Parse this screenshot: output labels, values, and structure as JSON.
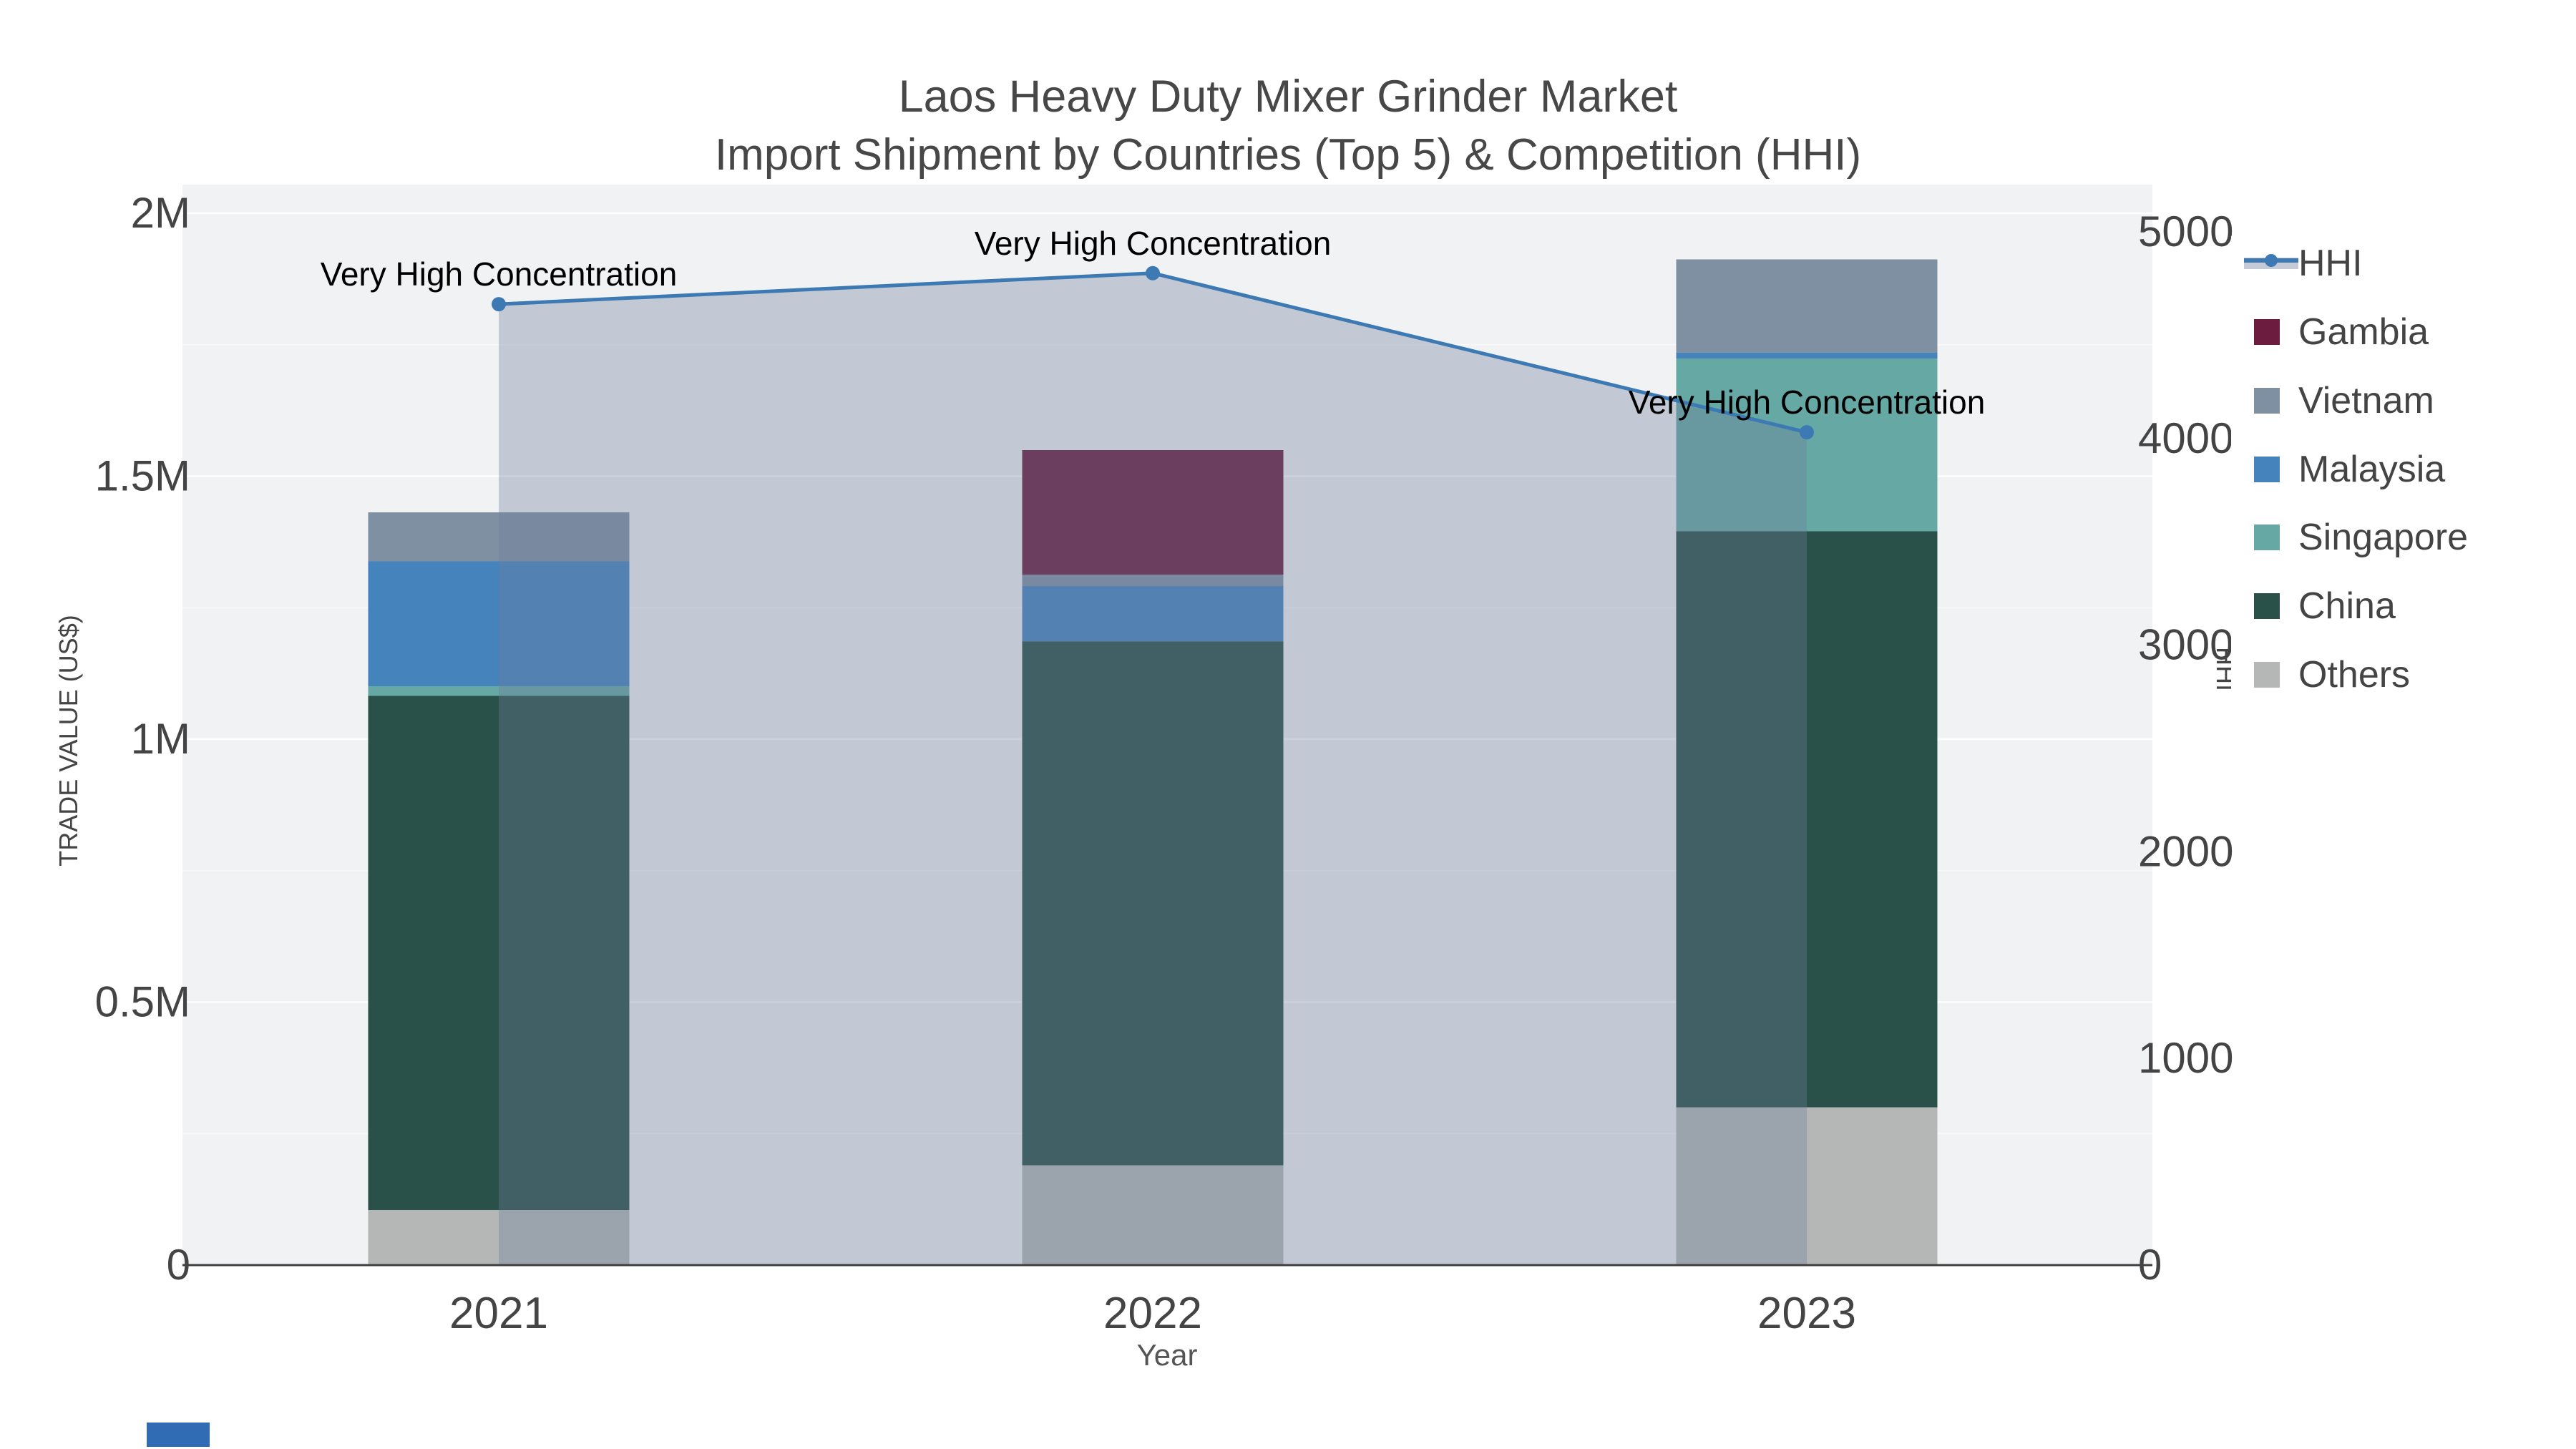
{
  "title": {
    "line1": "Laos Heavy Duty Mixer Grinder Market",
    "line2": "Import Shipment by Countries (Top 5) & Competition (HHI)"
  },
  "axes": {
    "x_label": "Year",
    "y_left_label": "TRADE VALUE (US$)",
    "y_right_label": "HHI",
    "y_left_ticks": [
      "0",
      "0.5M",
      "1M",
      "1.5M",
      "2M"
    ],
    "y_right_ticks": [
      "0",
      "1000",
      "2000",
      "3000",
      "4000",
      "5000"
    ],
    "x_ticks": [
      "2021",
      "2022",
      "2023"
    ]
  },
  "annotations": [
    "Very High Concentration",
    "Very High Concentration",
    "Very High Concentration"
  ],
  "legend": {
    "items": [
      {
        "label": "HHI",
        "color": "#3d7ab3",
        "type": "line"
      },
      {
        "label": "Gambia",
        "color": "#6b1c3f",
        "type": "swatch"
      },
      {
        "label": "Vietnam",
        "color": "#8090a3",
        "type": "swatch"
      },
      {
        "label": "Malaysia",
        "color": "#4583bd",
        "type": "swatch"
      },
      {
        "label": "Singapore",
        "color": "#66a8a4",
        "type": "swatch"
      },
      {
        "label": "China",
        "color": "#2a5149",
        "type": "swatch"
      },
      {
        "label": "Others",
        "color": "#b4b7b6",
        "type": "swatch"
      }
    ]
  },
  "colors": {
    "plot_background": "#f1f2f3",
    "gridline_major": "#ffffff",
    "gridline_minor": "#f8f8f9",
    "axis_line": "#3f3f3f",
    "tick_text": "#444444",
    "title_text": "#474747",
    "annotation_text": "#000000",
    "hhi_line": "#3d7ab3",
    "hhi_area_fill": "rgba(109,125,155,0.35)",
    "hhi_band_swatch": "#c5cbd6",
    "watermark_blue": "#2f6cb3"
  },
  "chart_data": {
    "type": "combo-stacked-bar-line",
    "title": "Laos Heavy Duty Mixer Grinder Market — Import Shipment by Countries (Top 5) & Competition (HHI)",
    "categories": [
      "2021",
      "2022",
      "2023"
    ],
    "xlabel": "Year",
    "ylabel": "TRADE VALUE (US$)",
    "ylabel_right": "HHI",
    "ylim_left": [
      0,
      2000000
    ],
    "ylim_right": [
      0,
      5000
    ],
    "grid": true,
    "legend_position": "right",
    "series": [
      {
        "name": "Gambia",
        "color": "#6b1c3f",
        "values": [
          0,
          237000,
          0
        ]
      },
      {
        "name": "Vietnam",
        "color": "#8090a3",
        "values": [
          93000,
          22000,
          177000
        ]
      },
      {
        "name": "Malaysia",
        "color": "#4583bd",
        "values": [
          237000,
          105000,
          11000
        ]
      },
      {
        "name": "Singapore",
        "color": "#66a8a4",
        "values": [
          19000,
          0,
          329000
        ]
      },
      {
        "name": "China",
        "color": "#2a5149",
        "values": [
          977000,
          996000,
          1095000
        ]
      },
      {
        "name": "Others",
        "color": "#b4b7b6",
        "values": [
          105000,
          190000,
          300000
        ]
      }
    ],
    "stack_order_bottom_to_top": [
      "Others",
      "China",
      "Singapore",
      "Malaysia",
      "Vietnam",
      "Gambia"
    ],
    "bar_totals": [
      1431000,
      1550000,
      1912000
    ],
    "line_series": {
      "name": "HHI",
      "axis": "right",
      "color": "#3d7ab3",
      "area_fill": "rgba(109,125,155,0.35)",
      "values": [
        4650,
        4800,
        4030
      ]
    },
    "point_annotations": [
      "Very High Concentration",
      "Very High Concentration",
      "Very High Concentration"
    ]
  },
  "watermark": {
    "color": "#2f6cb3"
  }
}
